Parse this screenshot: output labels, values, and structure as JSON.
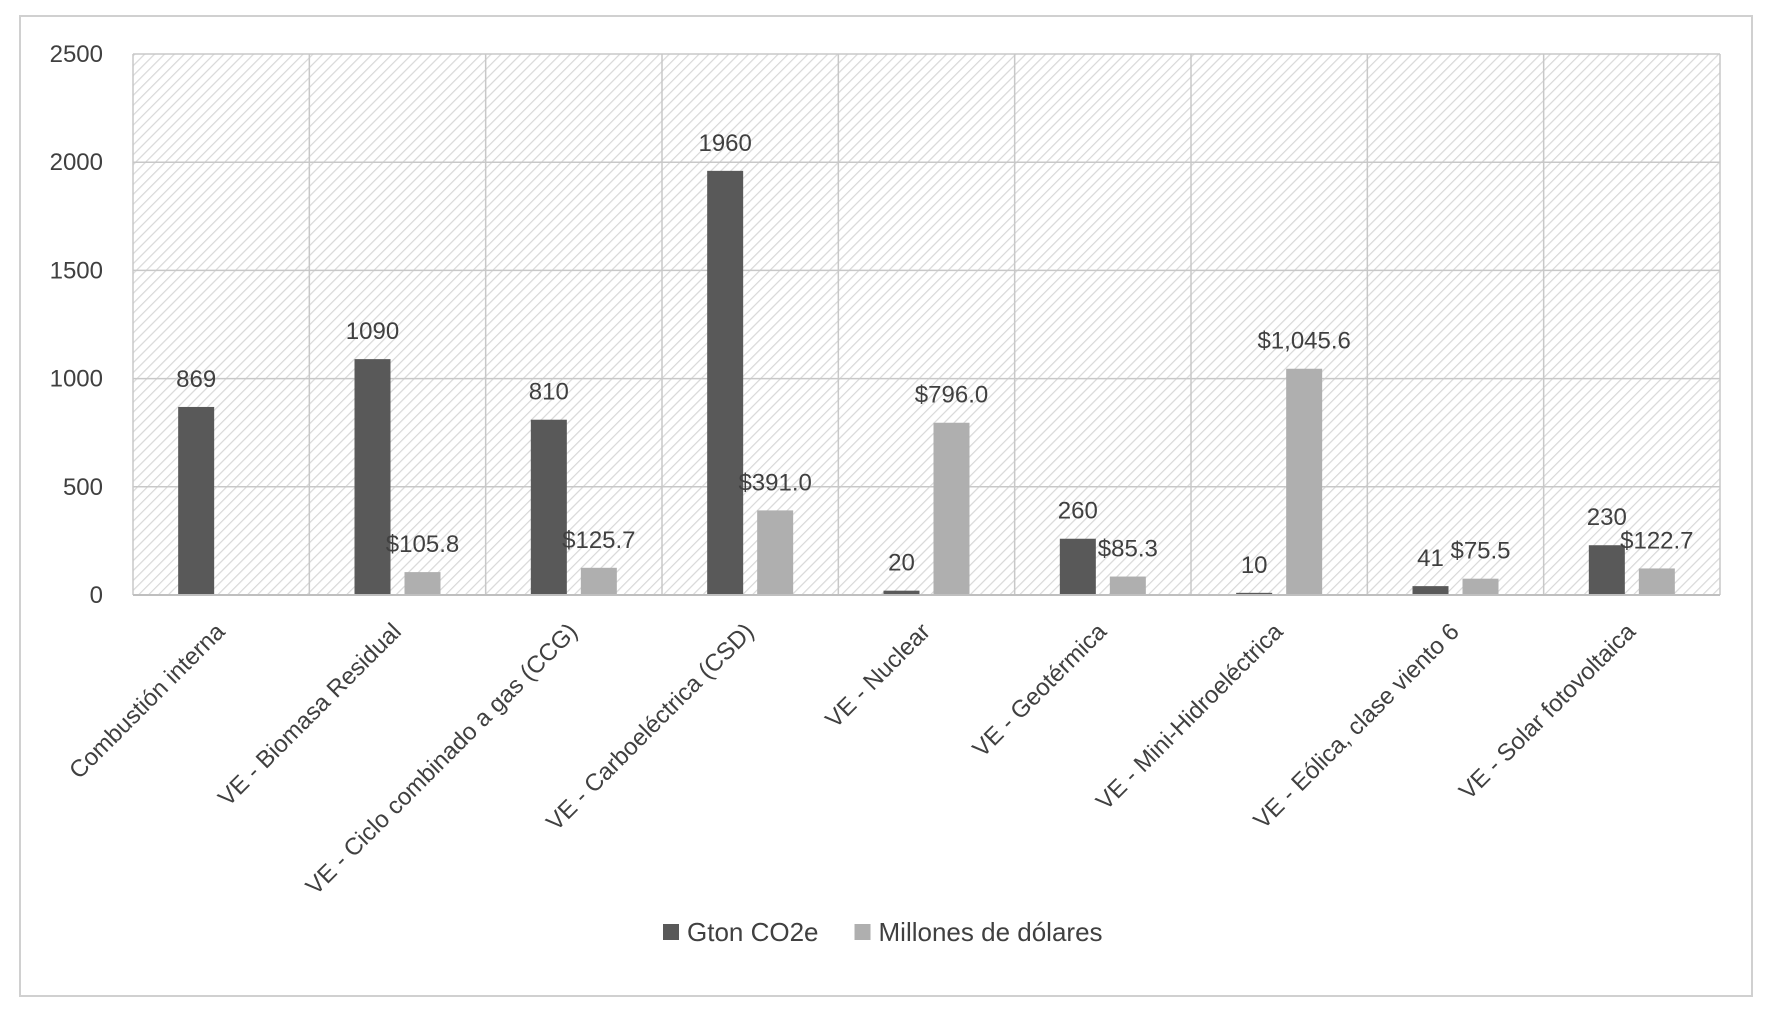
{
  "chart_data": {
    "type": "bar",
    "categories": [
      "Combustión interna",
      "VE - Biomasa Residual",
      "VE - Ciclo combinado a gas (CCG)",
      "VE - Carboeléctrica (CSD)",
      "VE - Nuclear",
      "VE - Geotérmica",
      "VE - Mini-Hidroeléctrica",
      "VE - Eólica, clase viento 6",
      "VE - Solar fotovoltaica"
    ],
    "series": [
      {
        "name": "Gton CO2e",
        "color": "#595959",
        "values": [
          869,
          1090,
          810,
          1960,
          20,
          260,
          10,
          41,
          230
        ],
        "labels": [
          "869",
          "1090",
          "810",
          "1960",
          "20",
          "260",
          "10",
          "41",
          "230"
        ]
      },
      {
        "name": "Millones de dólares",
        "color": "#afafaf",
        "values": [
          null,
          105.8,
          125.7,
          391.0,
          796.0,
          85.3,
          1045.6,
          75.5,
          122.7
        ],
        "labels": [
          "",
          "$105.8",
          "$125.7",
          "$391.0",
          "$796.0",
          "$85.3",
          "$1,045.6",
          "$75.5",
          "$122.7"
        ]
      }
    ],
    "ylim": [
      0,
      2500
    ],
    "yticks": [
      0,
      500,
      1000,
      1500,
      2000,
      2500
    ],
    "grid": true,
    "legend_position": "bottom",
    "title": "",
    "xlabel": "",
    "ylabel": ""
  }
}
